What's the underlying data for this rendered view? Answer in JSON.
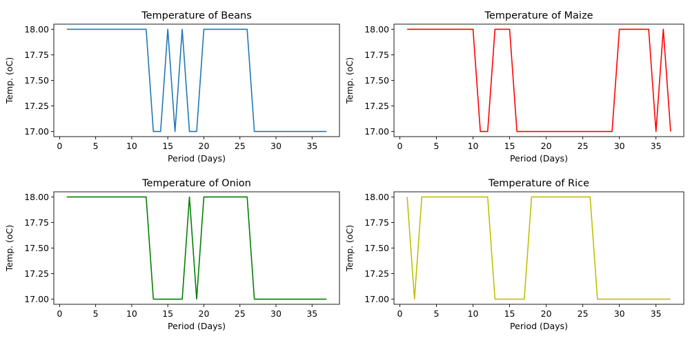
{
  "chart_data": [
    {
      "type": "line",
      "title": "Temperature of Beans",
      "xlabel": "Period (Days)",
      "ylabel": "Temp. (oC)",
      "xlim": [
        -0.8,
        38.8
      ],
      "ylim": [
        16.95,
        18.05
      ],
      "xticks": [
        0,
        5,
        10,
        15,
        20,
        25,
        30,
        35
      ],
      "xtick_labels": [
        "0",
        "5",
        "10",
        "15",
        "20",
        "25",
        "30",
        "35"
      ],
      "yticks": [
        17.0,
        17.25,
        17.5,
        17.75,
        18.0
      ],
      "ytick_labels": [
        "17.00",
        "17.25",
        "17.50",
        "17.75",
        "18.00"
      ],
      "grid": false,
      "series": [
        {
          "color": "#1f77b4",
          "x": [
            1,
            2,
            3,
            4,
            5,
            6,
            7,
            8,
            9,
            10,
            11,
            12,
            13,
            14,
            15,
            16,
            17,
            18,
            19,
            20,
            21,
            22,
            23,
            24,
            25,
            26,
            27,
            28,
            29,
            30,
            31,
            32,
            33,
            34,
            35,
            36,
            37
          ],
          "y": [
            18,
            18,
            18,
            18,
            18,
            18,
            18,
            18,
            18,
            18,
            18,
            18,
            17,
            17,
            18,
            17,
            18,
            17,
            17,
            18,
            18,
            18,
            18,
            18,
            18,
            18,
            17,
            17,
            17,
            17,
            17,
            17,
            17,
            17,
            17,
            17,
            17
          ]
        }
      ]
    },
    {
      "type": "line",
      "title": "Temperature of Maize",
      "xlabel": "Period (Days)",
      "ylabel": "Temp. (oC)",
      "xlim": [
        -0.8,
        38.8
      ],
      "ylim": [
        16.95,
        18.05
      ],
      "xticks": [
        0,
        5,
        10,
        15,
        20,
        25,
        30,
        35
      ],
      "xtick_labels": [
        "0",
        "5",
        "10",
        "15",
        "20",
        "25",
        "30",
        "35"
      ],
      "yticks": [
        17.0,
        17.25,
        17.5,
        17.75,
        18.0
      ],
      "ytick_labels": [
        "17.00",
        "17.25",
        "17.50",
        "17.75",
        "18.00"
      ],
      "grid": false,
      "series": [
        {
          "color": "#ff0000",
          "x": [
            1,
            2,
            3,
            4,
            5,
            6,
            7,
            8,
            9,
            10,
            11,
            12,
            13,
            14,
            15,
            16,
            17,
            18,
            19,
            20,
            21,
            22,
            23,
            24,
            25,
            26,
            27,
            28,
            29,
            30,
            31,
            32,
            33,
            34,
            35,
            36,
            37
          ],
          "y": [
            18,
            18,
            18,
            18,
            18,
            18,
            18,
            18,
            18,
            18,
            17,
            17,
            18,
            18,
            18,
            17,
            17,
            17,
            17,
            17,
            17,
            17,
            17,
            17,
            17,
            17,
            17,
            17,
            17,
            18,
            18,
            18,
            18,
            18,
            17,
            18,
            17
          ]
        }
      ]
    },
    {
      "type": "line",
      "title": "Temperature of Onion",
      "xlabel": "Period (Days)",
      "ylabel": "Temp. (oC)",
      "xlim": [
        -0.8,
        38.8
      ],
      "ylim": [
        16.95,
        18.05
      ],
      "xticks": [
        0,
        5,
        10,
        15,
        20,
        25,
        30,
        35
      ],
      "xtick_labels": [
        "0",
        "5",
        "10",
        "15",
        "20",
        "25",
        "30",
        "35"
      ],
      "yticks": [
        17.0,
        17.25,
        17.5,
        17.75,
        18.0
      ],
      "ytick_labels": [
        "17.00",
        "17.25",
        "17.50",
        "17.75",
        "18.00"
      ],
      "grid": false,
      "series": [
        {
          "color": "#008000",
          "x": [
            1,
            2,
            3,
            4,
            5,
            6,
            7,
            8,
            9,
            10,
            11,
            12,
            13,
            14,
            15,
            16,
            17,
            18,
            19,
            20,
            21,
            22,
            23,
            24,
            25,
            26,
            27,
            28,
            29,
            30,
            31,
            32,
            33,
            34,
            35,
            36,
            37
          ],
          "y": [
            18,
            18,
            18,
            18,
            18,
            18,
            18,
            18,
            18,
            18,
            18,
            18,
            17,
            17,
            17,
            17,
            17,
            18,
            17,
            18,
            18,
            18,
            18,
            18,
            18,
            18,
            17,
            17,
            17,
            17,
            17,
            17,
            17,
            17,
            17,
            17,
            17
          ]
        }
      ]
    },
    {
      "type": "line",
      "title": "Temperature of Rice",
      "xlabel": "Period (Days)",
      "ylabel": "Temp. (oC)",
      "xlim": [
        -0.8,
        38.8
      ],
      "ylim": [
        16.95,
        18.05
      ],
      "xticks": [
        0,
        5,
        10,
        15,
        20,
        25,
        30,
        35
      ],
      "xtick_labels": [
        "0",
        "5",
        "10",
        "15",
        "20",
        "25",
        "30",
        "35"
      ],
      "yticks": [
        17.0,
        17.25,
        17.5,
        17.75,
        18.0
      ],
      "ytick_labels": [
        "17.00",
        "17.25",
        "17.50",
        "17.75",
        "18.00"
      ],
      "grid": false,
      "series": [
        {
          "color": "#bfbf00",
          "x": [
            1,
            2,
            3,
            4,
            5,
            6,
            7,
            8,
            9,
            10,
            11,
            12,
            13,
            14,
            15,
            16,
            17,
            18,
            19,
            20,
            21,
            22,
            23,
            24,
            25,
            26,
            27,
            28,
            29,
            30,
            31,
            32,
            33,
            34,
            35,
            36,
            37
          ],
          "y": [
            18,
            17,
            18,
            18,
            18,
            18,
            18,
            18,
            18,
            18,
            18,
            18,
            17,
            17,
            17,
            17,
            17,
            18,
            18,
            18,
            18,
            18,
            18,
            18,
            18,
            18,
            17,
            17,
            17,
            17,
            17,
            17,
            17,
            17,
            17,
            17,
            17
          ]
        }
      ]
    }
  ]
}
